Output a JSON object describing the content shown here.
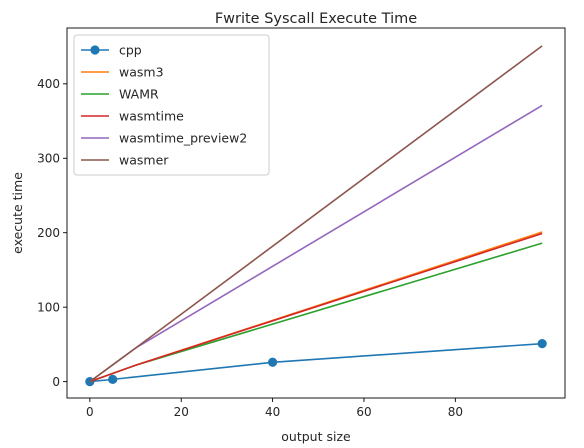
{
  "chart_data": {
    "type": "line",
    "title": "Fwrite Syscall Execute Time",
    "xlabel": "output size",
    "ylabel": "execute time",
    "xlim": [
      -5,
      104
    ],
    "ylim": [
      -22,
      475
    ],
    "x_ticks": [
      0,
      20,
      40,
      60,
      80
    ],
    "y_ticks": [
      0,
      100,
      200,
      300,
      400
    ],
    "grid": false,
    "legend_position": "top-left",
    "series": [
      {
        "name": "cpp",
        "color": "#1f77b4",
        "marker": "circle",
        "x": [
          0,
          5,
          40,
          99
        ],
        "y": [
          0,
          3,
          26,
          51
        ]
      },
      {
        "name": "wasm3",
        "color": "#ff7f0e",
        "marker": "none",
        "x": [
          0,
          10,
          99
        ],
        "y": [
          0,
          22,
          201
        ]
      },
      {
        "name": "WAMR",
        "color": "#2ca02c",
        "marker": "none",
        "x": [
          0,
          10,
          99
        ],
        "y": [
          0,
          22,
          186
        ]
      },
      {
        "name": "wasmtime",
        "color": "#d62728",
        "marker": "none",
        "x": [
          0,
          10,
          99
        ],
        "y": [
          0,
          22,
          199
        ]
      },
      {
        "name": "wasmtime_preview2",
        "color": "#9467bd",
        "marker": "none",
        "x": [
          0,
          10,
          99
        ],
        "y": [
          0,
          45,
          371
        ]
      },
      {
        "name": "wasmer",
        "color": "#8c564b",
        "marker": "none",
        "x": [
          0,
          10,
          99
        ],
        "y": [
          0,
          45,
          451
        ]
      }
    ]
  }
}
